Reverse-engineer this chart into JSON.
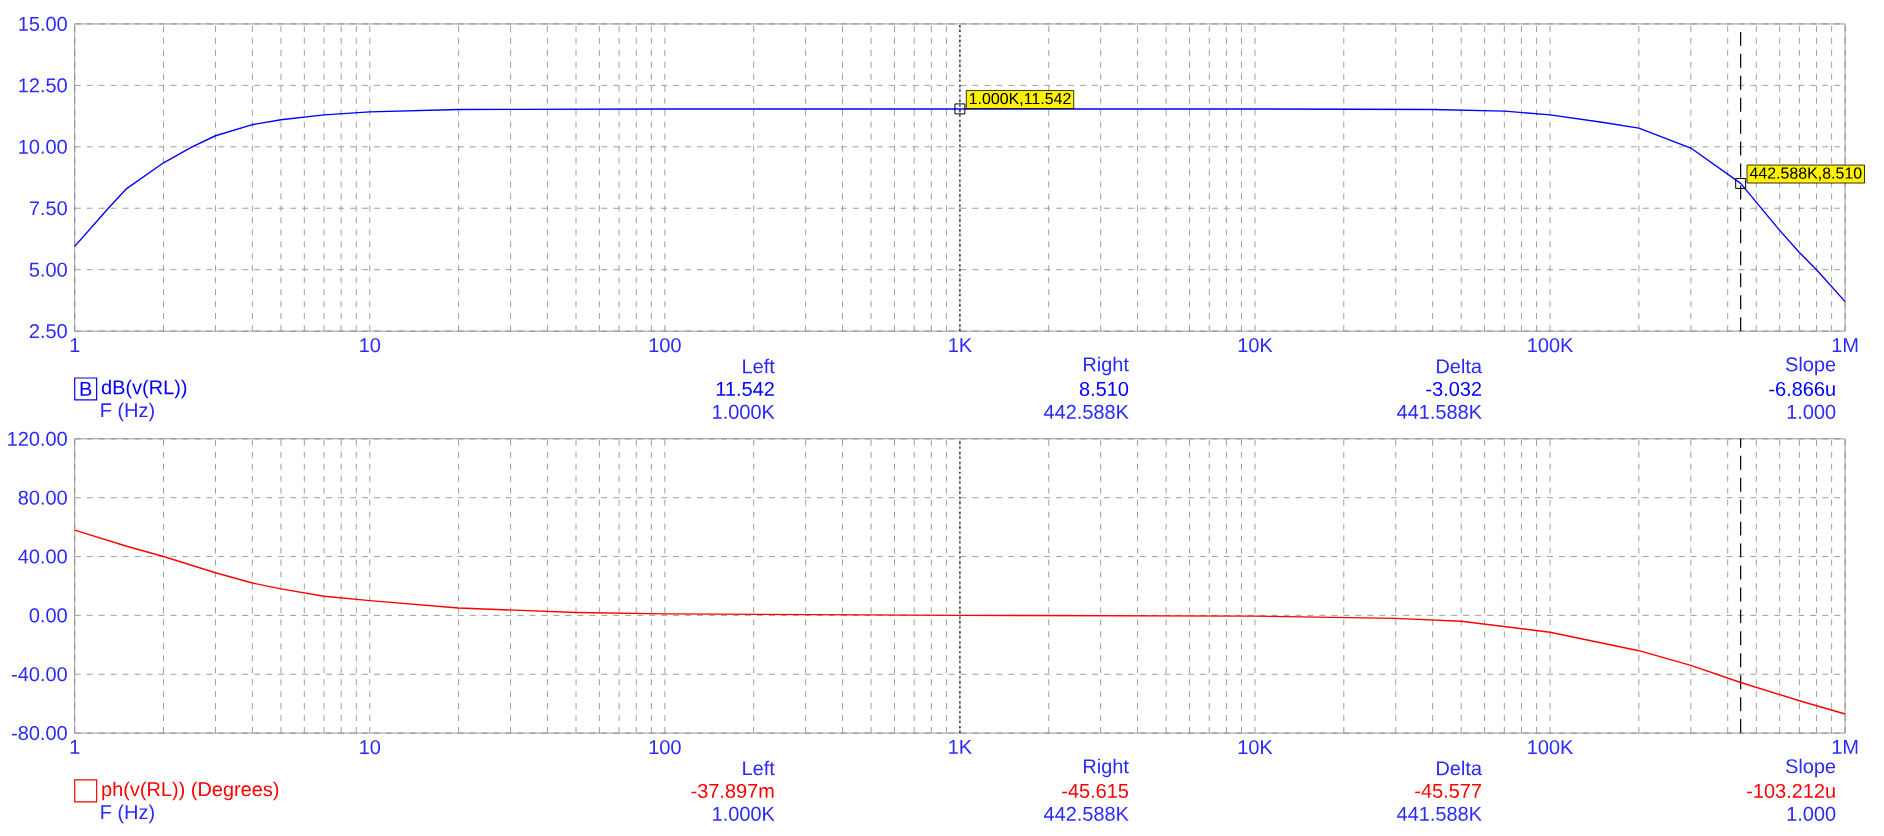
{
  "chart_data": [
    {
      "type": "line",
      "x": [
        1,
        1.3,
        1.5,
        2,
        2.5,
        3,
        4,
        5,
        7,
        10,
        20,
        100,
        1000,
        10000,
        40000,
        70000,
        100000,
        150000,
        200000,
        300000,
        442588,
        600000,
        700000,
        800000,
        1000000
      ],
      "series": [
        {
          "name": "dB(v(RL))",
          "color": "#0000ff",
          "values": [
            5.95,
            7.5,
            8.3,
            9.35,
            10.0,
            10.45,
            10.9,
            11.1,
            11.3,
            11.42,
            11.52,
            11.54,
            11.54,
            11.54,
            11.52,
            11.45,
            11.3,
            11.0,
            10.76,
            9.95,
            8.51,
            6.6,
            5.7,
            5.0,
            3.7
          ]
        }
      ],
      "xlim": [
        1,
        1000000
      ],
      "ylim": [
        2.5,
        15
      ],
      "xticks": [
        1,
        10,
        100,
        {
          "value": 1000,
          "label": "1K"
        },
        {
          "value": 10000,
          "label": "10K"
        },
        {
          "value": 100000,
          "label": "100K"
        },
        {
          "value": 1000000,
          "label": "1M"
        }
      ],
      "yticks": [
        {
          "value": 2.5,
          "label": "2.50"
        },
        {
          "value": 5,
          "label": "5.00"
        },
        {
          "value": 7.5,
          "label": "7.50"
        },
        {
          "value": 10,
          "label": "10.00"
        },
        {
          "value": 12.5,
          "label": "12.50"
        },
        {
          "value": 15,
          "label": "15.00"
        }
      ],
      "log": "x",
      "grid": true,
      "legend": "bottom left",
      "ref_lines": [
        {
          "axis": "x",
          "value": 1000,
          "label": null,
          "color": "#000000",
          "line_style": "dotted"
        },
        {
          "axis": "x",
          "value": 442588,
          "label": null,
          "color": "#000000",
          "line_style": "dashed"
        }
      ],
      "annotations": [
        "Left",
        "Right",
        "Delta",
        "Slope",
        "11.542",
        "8.510",
        "-3.032",
        "-6.866u",
        "F (Hz)",
        "1.000K",
        "442.588K",
        "441.588K",
        "1.000",
        "B",
        {
          "text": "1.000K,11.542",
          "x": 1000,
          "y": 11.542
        },
        {
          "text": "442.588K,8.510",
          "x": 442588,
          "y": 8.51
        }
      ]
    },
    {
      "type": "line",
      "x": [
        1,
        1.5,
        2,
        3,
        4,
        5,
        7,
        10,
        20,
        50,
        100,
        1000,
        10000,
        30000,
        50000,
        100000,
        200000,
        300000,
        442588,
        700000,
        1000000
      ],
      "series": [
        {
          "name": "ph(v(RL)) (Degrees)",
          "color": "#ff0000",
          "values": [
            58,
            47,
            40,
            29,
            22,
            18,
            13,
            10,
            5,
            2,
            1,
            0,
            -0.5,
            -2,
            -4,
            -11.5,
            -24,
            -34,
            -45.6,
            -58,
            -67
          ]
        }
      ],
      "xlim": [
        1,
        1000000
      ],
      "ylim": [
        -80,
        120
      ],
      "xticks": [
        1,
        10,
        100,
        {
          "value": 1000,
          "label": "1K"
        },
        {
          "value": 10000,
          "label": "10K"
        },
        {
          "value": 100000,
          "label": "100K"
        },
        {
          "value": 1000000,
          "label": "1M"
        }
      ],
      "yticks": [
        {
          "value": -80,
          "label": "-80.00"
        },
        {
          "value": -40,
          "label": "-40.00"
        },
        {
          "value": 0,
          "label": "0.00"
        },
        {
          "value": 40,
          "label": "40.00"
        },
        {
          "value": 80,
          "label": "80.00"
        },
        {
          "value": 120,
          "label": "120.00"
        }
      ],
      "log": "x",
      "grid": true,
      "legend": "bottom left",
      "ref_lines": [
        {
          "axis": "x",
          "value": 1000,
          "label": null,
          "color": "#000000",
          "line_style": "dotted"
        },
        {
          "axis": "x",
          "value": 442588,
          "label": null,
          "color": "#000000",
          "line_style": "dashed"
        }
      ],
      "annotations": [
        "Left",
        "Right",
        "Delta",
        "Slope",
        "-37.897m",
        "-45.615",
        "-45.577",
        "-103.212u",
        "F (Hz)",
        "1.000K",
        "442.588K",
        "441.588K",
        "1.000"
      ]
    }
  ]
}
